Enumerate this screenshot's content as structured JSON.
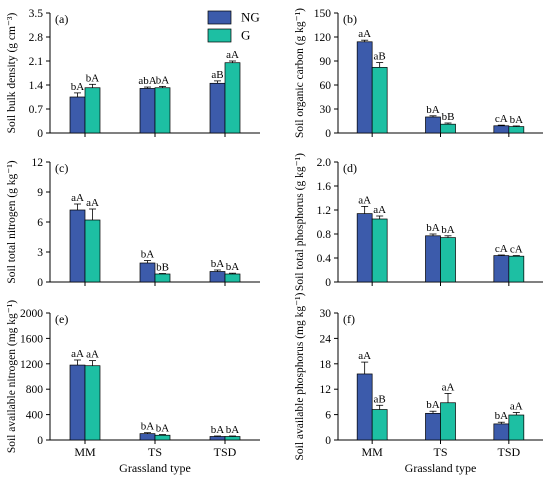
{
  "figure": {
    "legend": [
      {
        "label": "NG",
        "color": "#3c5bab"
      },
      {
        "label": "G",
        "color": "#1dbfa3"
      }
    ],
    "colors": {
      "NG": "#3c5bab",
      "G": "#1dbfa3"
    }
  },
  "chart_data": [
    {
      "type": "bar",
      "panel": "(a)",
      "categories": [
        "MM",
        "TS",
        "TSD"
      ],
      "ylabel": "Soil bulk density (g cm⁻³)",
      "xlabel": "",
      "ylim": [
        0,
        3.5
      ],
      "yticks": [
        "0",
        "0.7",
        "1.4",
        "2.1",
        "2.8",
        "3.5"
      ],
      "series": [
        {
          "name": "NG",
          "values": [
            1.05,
            1.3,
            1.45
          ],
          "errors": [
            0.12,
            0.04,
            0.07
          ],
          "labels": [
            "bA",
            "abA",
            "aB"
          ]
        },
        {
          "name": "G",
          "values": [
            1.32,
            1.32,
            2.05
          ],
          "errors": [
            0.1,
            0.04,
            0.05
          ],
          "labels": [
            "bA",
            "bA",
            "aA"
          ]
        }
      ]
    },
    {
      "type": "bar",
      "panel": "(b)",
      "categories": [
        "MM",
        "TS",
        "TSD"
      ],
      "ylabel": "Soil organic carbon (g kg⁻¹)",
      "xlabel": "",
      "ylim": [
        0,
        150
      ],
      "yticks": [
        "0",
        "30",
        "60",
        "90",
        "120",
        "150"
      ],
      "series": [
        {
          "name": "NG",
          "values": [
            114,
            20,
            9
          ],
          "errors": [
            2,
            1.5,
            0.8
          ],
          "labels": [
            "aA",
            "bA",
            "cA"
          ]
        },
        {
          "name": "G",
          "values": [
            82,
            11,
            8
          ],
          "errors": [
            6,
            1.5,
            0.8
          ],
          "labels": [
            "aB",
            "bB",
            "bA"
          ]
        }
      ]
    },
    {
      "type": "bar",
      "panel": "(c)",
      "categories": [
        "MM",
        "TS",
        "TSD"
      ],
      "ylabel": "Soil total nitrogen (g kg⁻¹)",
      "xlabel": "",
      "ylim": [
        0,
        12
      ],
      "yticks": [
        "0",
        "3",
        "6",
        "9",
        "12"
      ],
      "series": [
        {
          "name": "NG",
          "values": [
            7.2,
            1.9,
            1.05
          ],
          "errors": [
            0.6,
            0.25,
            0.15
          ],
          "labels": [
            "aA",
            "bA",
            "bA"
          ]
        },
        {
          "name": "G",
          "values": [
            6.2,
            0.8,
            0.8
          ],
          "errors": [
            1.1,
            0.05,
            0.08
          ],
          "labels": [
            "aA",
            "bB",
            "bA"
          ]
        }
      ]
    },
    {
      "type": "bar",
      "panel": "(d)",
      "categories": [
        "MM",
        "TS",
        "TSD"
      ],
      "ylabel": "Soil total phosphorus (g kg⁻¹)",
      "xlabel": "",
      "ylim": [
        0,
        2.0
      ],
      "yticks": [
        "0",
        "0.4",
        "0.8",
        "1.2",
        "1.6",
        "2.0"
      ],
      "series": [
        {
          "name": "NG",
          "values": [
            1.14,
            0.77,
            0.44
          ],
          "errors": [
            0.12,
            0.03,
            0.01
          ],
          "labels": [
            "aA",
            "bA",
            "cA"
          ]
        },
        {
          "name": "G",
          "values": [
            1.05,
            0.74,
            0.43
          ],
          "errors": [
            0.05,
            0.03,
            0.01
          ],
          "labels": [
            "aA",
            "bA",
            "cA"
          ]
        }
      ]
    },
    {
      "type": "bar",
      "panel": "(e)",
      "categories": [
        "MM",
        "TS",
        "TSD"
      ],
      "ylabel": "Soil available nitrogen (mg kg⁻¹)",
      "xlabel": "Grassland type",
      "ylim": [
        0,
        2000
      ],
      "yticks": [
        "0",
        "400",
        "800",
        "1200",
        "1600",
        "2000"
      ],
      "series": [
        {
          "name": "NG",
          "values": [
            1180,
            100,
            55
          ],
          "errors": [
            80,
            15,
            8
          ],
          "labels": [
            "aA",
            "bA",
            "bA"
          ]
        },
        {
          "name": "G",
          "values": [
            1170,
            75,
            55
          ],
          "errors": [
            80,
            10,
            8
          ],
          "labels": [
            "aA",
            "bA",
            "bA"
          ]
        }
      ]
    },
    {
      "type": "bar",
      "panel": "(f)",
      "categories": [
        "MM",
        "TS",
        "TSD"
      ],
      "ylabel": "Soil available phosphorus (mg kg⁻¹)",
      "xlabel": "Grassland type",
      "ylim": [
        0,
        30
      ],
      "yticks": [
        "0",
        "6",
        "12",
        "18",
        "24",
        "30"
      ],
      "series": [
        {
          "name": "NG",
          "values": [
            15.6,
            6.3,
            3.8
          ],
          "errors": [
            2.8,
            0.5,
            0.4
          ],
          "labels": [
            "aA",
            "bA",
            "bA"
          ]
        },
        {
          "name": "G",
          "values": [
            7.2,
            8.8,
            5.9
          ],
          "errors": [
            1.0,
            2.2,
            0.6
          ],
          "labels": [
            "aB",
            "aA",
            "aA"
          ]
        }
      ]
    }
  ]
}
